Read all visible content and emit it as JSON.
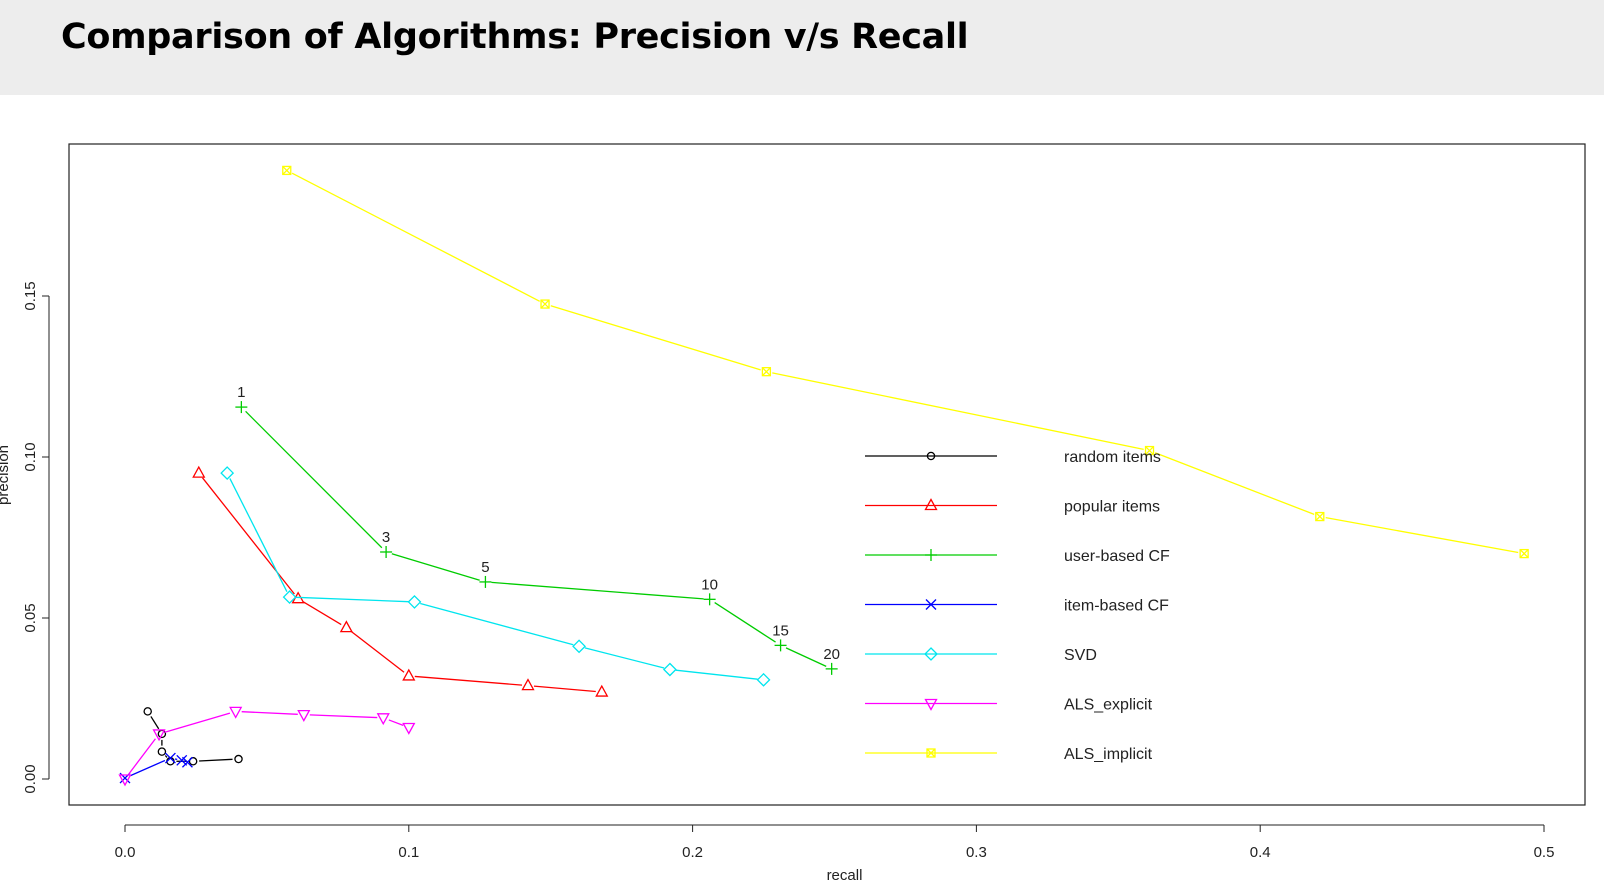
{
  "slide": {
    "title": "Comparison of Algorithms: Precision v/s Recall"
  },
  "chart_data": {
    "type": "line",
    "xlabel": "recall",
    "ylabel": "precision",
    "xlim": [
      0,
      0.5
    ],
    "ylim": [
      0,
      0.19
    ],
    "xticks": [
      0.0,
      0.1,
      0.2,
      0.3,
      0.4,
      0.5
    ],
    "xtick_labels": [
      "0.0",
      "0.1",
      "0.2",
      "0.3",
      "0.4",
      "0.5"
    ],
    "yticks": [
      0.0,
      0.05,
      0.1,
      0.15
    ],
    "ytick_labels": [
      "0.00",
      "0.05",
      "0.10",
      "0.15"
    ],
    "grid": false,
    "legend_position": "center-right",
    "series": [
      {
        "name": "random items",
        "color": "#000000",
        "marker": "circle",
        "x": [
          0.008,
          0.013,
          0.013,
          0.016,
          0.024,
          0.04
        ],
        "y": [
          0.021,
          0.014,
          0.0085,
          0.0055,
          0.0055,
          0.0062
        ]
      },
      {
        "name": "popular items",
        "color": "#ff0000",
        "marker": "triangle-up",
        "x": [
          0.026,
          0.061,
          0.078,
          0.1,
          0.142,
          0.168
        ],
        "y": [
          0.095,
          0.056,
          0.047,
          0.032,
          0.029,
          0.027
        ]
      },
      {
        "name": "user-based CF",
        "color": "#00cc00",
        "marker": "plus",
        "x": [
          0.041,
          0.092,
          0.127,
          0.206,
          0.231,
          0.249
        ],
        "y": [
          0.1155,
          0.0705,
          0.0612,
          0.0558,
          0.0415,
          0.0342
        ],
        "point_labels": [
          "1",
          "3",
          "5",
          "10",
          "15",
          "20"
        ]
      },
      {
        "name": "item-based CF",
        "color": "#0000ff",
        "marker": "x",
        "x": [
          0.0,
          0.016,
          0.02,
          0.022
        ],
        "y": [
          0.0003,
          0.0065,
          0.0058,
          0.0052
        ]
      },
      {
        "name": "SVD",
        "color": "#00e5ee",
        "marker": "diamond",
        "x": [
          0.036,
          0.058,
          0.102,
          0.16,
          0.192,
          0.225
        ],
        "y": [
          0.095,
          0.0565,
          0.055,
          0.0412,
          0.034,
          0.0308
        ]
      },
      {
        "name": "ALS_explicit",
        "color": "#ff00ff",
        "marker": "triangle-down",
        "x": [
          0.0,
          0.012,
          0.039,
          0.063,
          0.091,
          0.1
        ],
        "y": [
          0.0,
          0.014,
          0.021,
          0.02,
          0.019,
          0.016
        ]
      },
      {
        "name": "ALS_implicit",
        "color": "#ffff00",
        "marker": "square-x",
        "x": [
          0.057,
          0.148,
          0.226,
          0.361,
          0.421,
          0.493
        ],
        "y": [
          0.189,
          0.1475,
          0.1265,
          0.102,
          0.0815,
          0.07
        ]
      }
    ]
  }
}
